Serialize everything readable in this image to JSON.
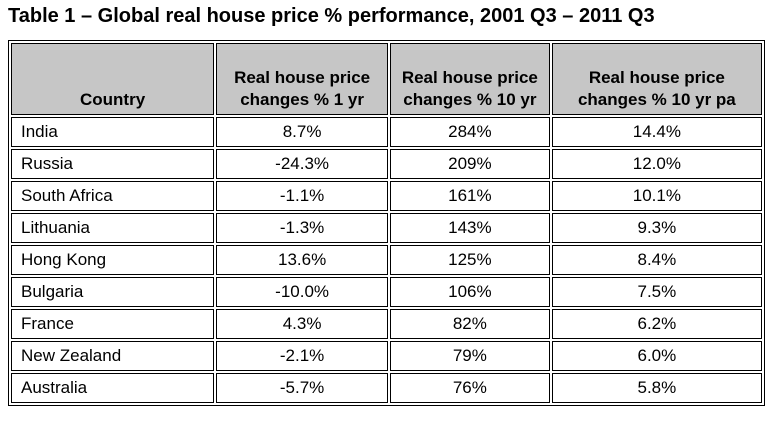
{
  "title": "Table 1 – Global real house price % performance, 2001 Q3 – 2011 Q3",
  "colors": {
    "header_background": "#c6c6c6",
    "border": "#000000",
    "text": "#000000",
    "page_background": "#ffffff"
  },
  "table": {
    "columns": [
      "Country",
      "Real house price changes % 1 yr",
      "Real house price changes % 10 yr",
      "Real house price changes % 10 yr pa"
    ],
    "rows": [
      {
        "country": "India",
        "one_yr": "8.7%",
        "ten_yr": "284%",
        "ten_yr_pa": "14.4%"
      },
      {
        "country": "Russia",
        "one_yr": "-24.3%",
        "ten_yr": "209%",
        "ten_yr_pa": "12.0%"
      },
      {
        "country": "South Africa",
        "one_yr": "-1.1%",
        "ten_yr": "161%",
        "ten_yr_pa": "10.1%"
      },
      {
        "country": "Lithuania",
        "one_yr": "-1.3%",
        "ten_yr": "143%",
        "ten_yr_pa": "9.3%"
      },
      {
        "country": "Hong Kong",
        "one_yr": "13.6%",
        "ten_yr": "125%",
        "ten_yr_pa": "8.4%"
      },
      {
        "country": "Bulgaria",
        "one_yr": "-10.0%",
        "ten_yr": "106%",
        "ten_yr_pa": "7.5%"
      },
      {
        "country": "France",
        "one_yr": "4.3%",
        "ten_yr": "82%",
        "ten_yr_pa": "6.2%"
      },
      {
        "country": "New Zealand",
        "one_yr": "-2.1%",
        "ten_yr": "79%",
        "ten_yr_pa": "6.0%"
      },
      {
        "country": "Australia",
        "one_yr": "-5.7%",
        "ten_yr": "76%",
        "ten_yr_pa": "5.8%"
      }
    ]
  },
  "chart_data": {
    "type": "table",
    "title": "Table 1 – Global real house price % performance, 2001 Q3 – 2011 Q3",
    "categories": [
      "India",
      "Russia",
      "South Africa",
      "Lithuania",
      "Hong Kong",
      "Bulgaria",
      "France",
      "New Zealand",
      "Australia"
    ],
    "series": [
      {
        "name": "Real house price changes % 1 yr",
        "values": [
          8.7,
          -24.3,
          -1.1,
          -1.3,
          13.6,
          -10.0,
          4.3,
          -2.1,
          -5.7
        ]
      },
      {
        "name": "Real house price changes % 10 yr",
        "values": [
          284,
          209,
          161,
          143,
          125,
          106,
          82,
          79,
          76
        ]
      },
      {
        "name": "Real house price changes % 10 yr pa",
        "values": [
          14.4,
          12.0,
          10.1,
          9.3,
          8.4,
          7.5,
          6.2,
          6.0,
          5.8
        ]
      }
    ]
  }
}
